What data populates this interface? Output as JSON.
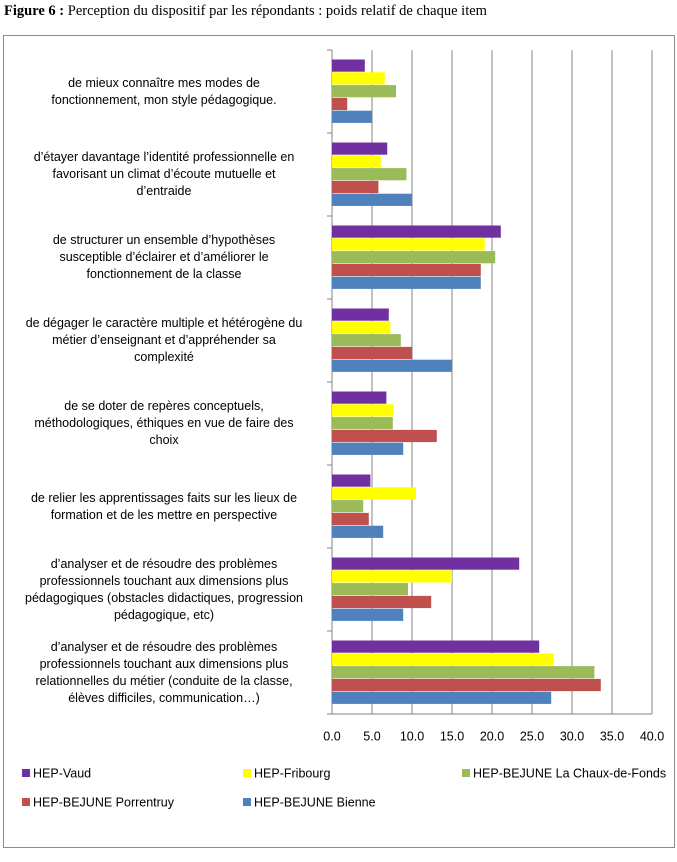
{
  "chart_data": {
    "type": "barh",
    "figure_label": "Figure 6 :",
    "title": "Perception du dispositif par les répondants : poids relatif de chaque item",
    "categories": [
      "de mieux connaître mes modes de\nfonctionnement, mon style pédagogique.",
      "d’étayer davantage l’identité professionnelle en\nfavorisant un climat d’écoute mutuelle et\nd’entraide",
      "de structurer un ensemble d’hypothèses\nsusceptible d’éclairer et d’améliorer le\nfonctionnement de la classe",
      "de dégager le caractère multiple et hétérogène du\nmétier d’enseignant et d’appréhender sa\ncomplexité",
      "de se doter de repères conceptuels,\nméthodologiques, éthiques en vue de faire des\nchoix",
      "de relier les apprentissages faits sur les lieux de\nformation et de les mettre en perspective",
      "d’analyser et de résoudre des problèmes\nprofessionnels touchant aux dimensions plus\npédagogiques  (obstacles didactiques, progression\npédagogique, etc)",
      "d’analyser et de résoudre des problèmes\nprofessionnels touchant aux dimensions plus\nrelationnelles du métier  (conduite de la classe,\nélèves difficiles, communication…)"
    ],
    "series": [
      {
        "name": "HEP-Vaud",
        "color": "#7030a0",
        "values": [
          4.1,
          6.9,
          21.1,
          7.1,
          6.8,
          4.8,
          23.4,
          25.9
        ]
      },
      {
        "name": "HEP-Fribourg",
        "color": "#ffff00",
        "values": [
          6.6,
          6.1,
          19.1,
          7.3,
          7.7,
          10.5,
          15.0,
          27.7
        ]
      },
      {
        "name": "HEP-BEJUNE La Chaux-de-Fonds",
        "color": "#9bbb59",
        "values": [
          8.0,
          9.3,
          20.4,
          8.6,
          7.6,
          3.9,
          9.5,
          32.8
        ]
      },
      {
        "name": "HEP-BEJUNE Porrentruy",
        "color": "#c0504d",
        "values": [
          1.9,
          5.8,
          18.6,
          10.0,
          13.1,
          4.6,
          12.4,
          33.6
        ]
      },
      {
        "name": "HEP-BEJUNE Bienne",
        "color": "#4f81bd",
        "values": [
          5.0,
          10.0,
          18.6,
          15.0,
          8.9,
          6.4,
          8.9,
          27.4
        ]
      }
    ],
    "xlim": [
      0,
      40
    ],
    "xticks": [
      {
        "value": 0,
        "label": "0.0"
      },
      {
        "value": 5,
        "label": "5.0"
      },
      {
        "value": 10,
        "label": "10.0"
      },
      {
        "value": 15,
        "label": "15.0"
      },
      {
        "value": 20,
        "label": "20.0"
      },
      {
        "value": 25,
        "label": "25.0"
      },
      {
        "value": 30,
        "label": "30.0"
      },
      {
        "value": 35,
        "label": "35.0"
      },
      {
        "value": 40,
        "label": "40.0"
      }
    ],
    "grid": true,
    "legend": "bottom"
  }
}
